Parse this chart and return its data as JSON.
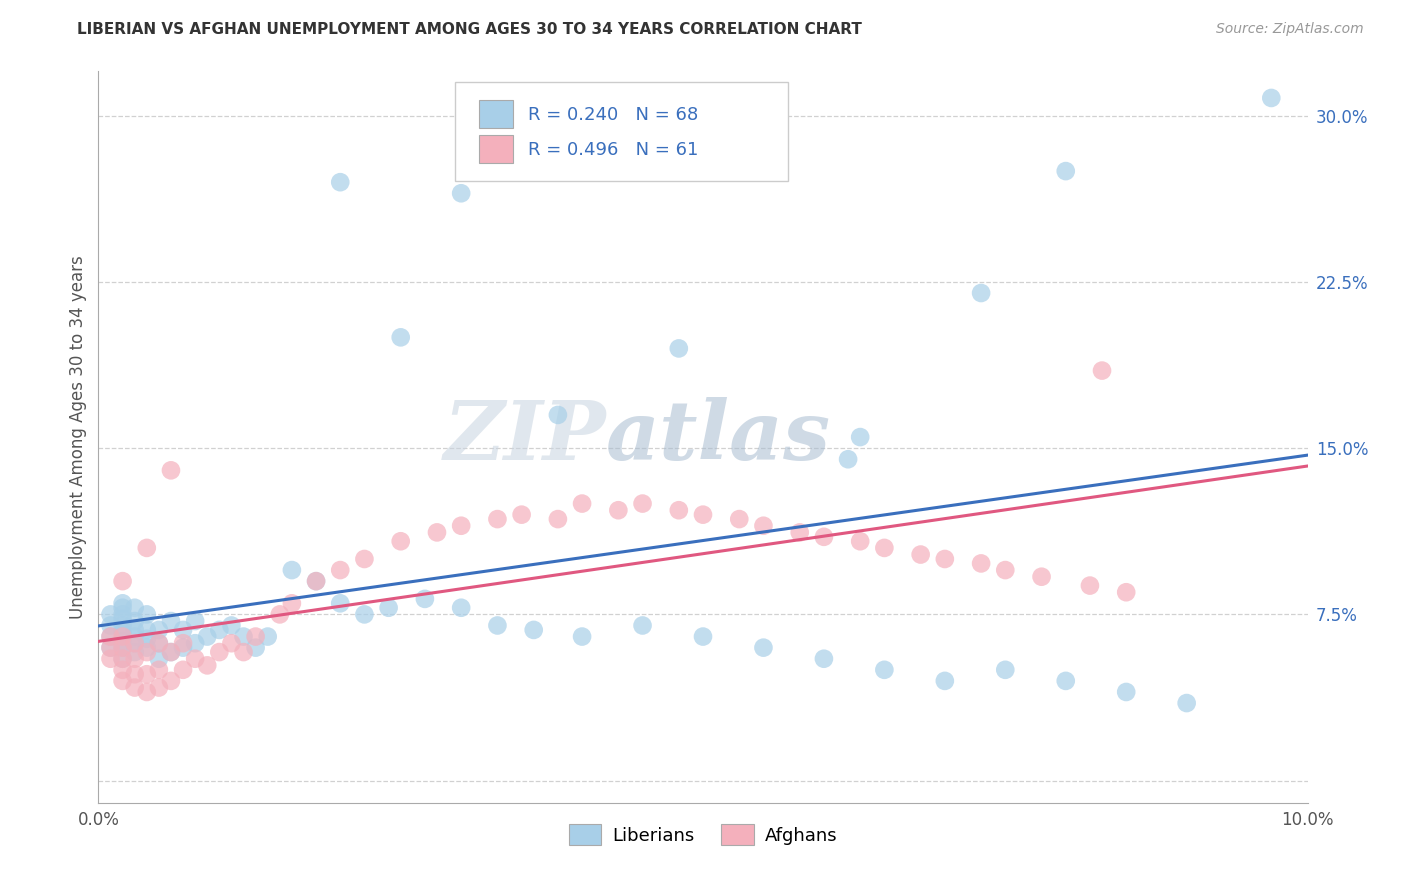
{
  "title": "LIBERIAN VS AFGHAN UNEMPLOYMENT AMONG AGES 30 TO 34 YEARS CORRELATION CHART",
  "source": "Source: ZipAtlas.com",
  "ylabel": "Unemployment Among Ages 30 to 34 years",
  "legend_r_n": [
    {
      "R": "0.240",
      "N": "68"
    },
    {
      "R": "0.496",
      "N": "61"
    }
  ],
  "xlim": [
    0.0,
    0.1
  ],
  "ylim": [
    -0.01,
    0.32
  ],
  "xticks": [
    0.0,
    0.025,
    0.05,
    0.075,
    0.1
  ],
  "xtick_labels": [
    "0.0%",
    "",
    "",
    "",
    "10.0%"
  ],
  "yticks": [
    0.0,
    0.075,
    0.15,
    0.225,
    0.3
  ],
  "ytick_labels": [
    "",
    "7.5%",
    "15.0%",
    "22.5%",
    "30.0%"
  ],
  "background_color": "#ffffff",
  "grid_color": "#cccccc",
  "liberian_color": "#a8cfe8",
  "afghan_color": "#f4b0bc",
  "liberian_line_color": "#3a6fbd",
  "afghan_line_color": "#e05880",
  "legend_color": "#3a6fbd",
  "watermark_zip": "#c8d8e8",
  "watermark_atlas": "#a8c0d8",
  "lib_x": [
    0.001,
    0.001,
    0.001,
    0.001,
    0.002,
    0.002,
    0.002,
    0.002,
    0.002,
    0.002,
    0.002,
    0.002,
    0.002,
    0.003,
    0.003,
    0.003,
    0.003,
    0.003,
    0.003,
    0.004,
    0.004,
    0.004,
    0.004,
    0.005,
    0.005,
    0.005,
    0.006,
    0.006,
    0.007,
    0.007,
    0.008,
    0.008,
    0.009,
    0.01,
    0.011,
    0.012,
    0.013,
    0.014,
    0.016,
    0.018,
    0.02,
    0.022,
    0.024,
    0.027,
    0.03,
    0.033,
    0.036,
    0.04,
    0.045,
    0.05,
    0.055,
    0.06,
    0.065,
    0.07,
    0.075,
    0.08,
    0.085,
    0.09,
    0.02,
    0.025,
    0.03,
    0.038,
    0.048,
    0.063,
    0.073,
    0.08,
    0.062,
    0.097
  ],
  "lib_y": [
    0.06,
    0.065,
    0.07,
    0.075,
    0.055,
    0.06,
    0.063,
    0.067,
    0.07,
    0.073,
    0.075,
    0.078,
    0.08,
    0.058,
    0.062,
    0.065,
    0.068,
    0.072,
    0.078,
    0.06,
    0.064,
    0.068,
    0.075,
    0.055,
    0.062,
    0.068,
    0.058,
    0.072,
    0.06,
    0.068,
    0.062,
    0.072,
    0.065,
    0.068,
    0.07,
    0.065,
    0.06,
    0.065,
    0.095,
    0.09,
    0.08,
    0.075,
    0.078,
    0.082,
    0.078,
    0.07,
    0.068,
    0.065,
    0.07,
    0.065,
    0.06,
    0.055,
    0.05,
    0.045,
    0.05,
    0.045,
    0.04,
    0.035,
    0.27,
    0.2,
    0.265,
    0.165,
    0.195,
    0.155,
    0.22,
    0.275,
    0.145,
    0.308
  ],
  "afg_x": [
    0.001,
    0.001,
    0.001,
    0.002,
    0.002,
    0.002,
    0.002,
    0.002,
    0.003,
    0.003,
    0.003,
    0.003,
    0.004,
    0.004,
    0.004,
    0.005,
    0.005,
    0.005,
    0.006,
    0.006,
    0.007,
    0.007,
    0.008,
    0.009,
    0.01,
    0.011,
    0.012,
    0.013,
    0.015,
    0.016,
    0.018,
    0.02,
    0.022,
    0.025,
    0.028,
    0.03,
    0.033,
    0.035,
    0.038,
    0.04,
    0.043,
    0.045,
    0.048,
    0.05,
    0.053,
    0.055,
    0.058,
    0.06,
    0.063,
    0.065,
    0.068,
    0.07,
    0.073,
    0.075,
    0.078,
    0.082,
    0.085,
    0.083,
    0.002,
    0.004,
    0.006
  ],
  "afg_y": [
    0.055,
    0.06,
    0.065,
    0.045,
    0.05,
    0.055,
    0.06,
    0.065,
    0.042,
    0.048,
    0.055,
    0.062,
    0.04,
    0.048,
    0.058,
    0.042,
    0.05,
    0.062,
    0.045,
    0.058,
    0.05,
    0.062,
    0.055,
    0.052,
    0.058,
    0.062,
    0.058,
    0.065,
    0.075,
    0.08,
    0.09,
    0.095,
    0.1,
    0.108,
    0.112,
    0.115,
    0.118,
    0.12,
    0.118,
    0.125,
    0.122,
    0.125,
    0.122,
    0.12,
    0.118,
    0.115,
    0.112,
    0.11,
    0.108,
    0.105,
    0.102,
    0.1,
    0.098,
    0.095,
    0.092,
    0.088,
    0.085,
    0.185,
    0.09,
    0.105,
    0.14
  ]
}
